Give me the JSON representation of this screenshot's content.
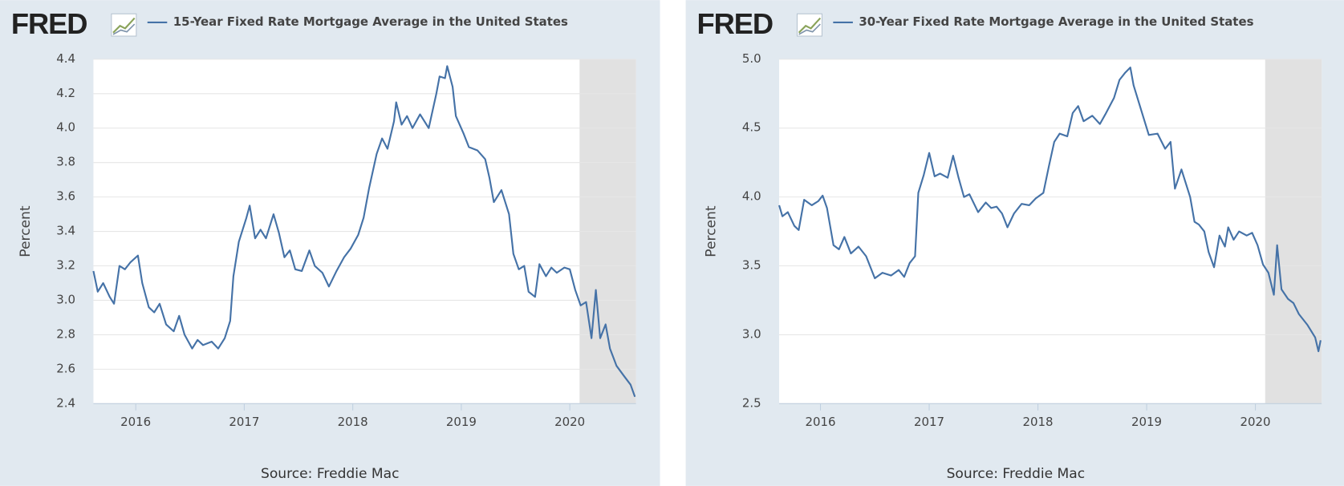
{
  "chart_data": [
    {
      "type": "line",
      "logo": "FRED",
      "y_label": "Percent",
      "source": "Source: Freddie Mac",
      "xlim": [
        2015.61,
        2020.61
      ],
      "xticks": [
        2016,
        2017,
        2018,
        2019,
        2020
      ],
      "ylim": [
        2.4,
        4.4
      ],
      "yticks": [
        2.4,
        2.6,
        2.8,
        {
          "value": 3.0,
          "label": "3.0"
        },
        3.2,
        3.4,
        3.6,
        3.8,
        {
          "value": 4.0,
          "label": "4.0"
        },
        4.2,
        4.4
      ],
      "grid": true,
      "shade": [
        2020.09,
        2020.61
      ],
      "shade_color": "#e1e1e1",
      "x": [
        2015.61,
        2015.65,
        2015.7,
        2015.76,
        2015.8,
        2015.85,
        2015.9,
        2015.95,
        2016.02,
        2016.06,
        2016.12,
        2016.17,
        2016.22,
        2016.28,
        2016.35,
        2016.4,
        2016.45,
        2016.52,
        2016.57,
        2016.62,
        2016.7,
        2016.76,
        2016.82,
        2016.87,
        2016.9,
        2016.95,
        2017.02,
        2017.05,
        2017.1,
        2017.15,
        2017.2,
        2017.27,
        2017.32,
        2017.37,
        2017.42,
        2017.47,
        2017.53,
        2017.6,
        2017.65,
        2017.72,
        2017.78,
        2017.85,
        2017.92,
        2017.98,
        2018.05,
        2018.1,
        2018.15,
        2018.22,
        2018.27,
        2018.32,
        2018.38,
        2018.4,
        2018.45,
        2018.5,
        2018.55,
        2018.62,
        2018.7,
        2018.77,
        2018.8,
        2018.85,
        2018.87,
        2018.92,
        2018.95,
        2019.02,
        2019.07,
        2019.15,
        2019.22,
        2019.26,
        2019.3,
        2019.37,
        2019.44,
        2019.48,
        2019.53,
        2019.58,
        2019.62,
        2019.68,
        2019.72,
        2019.78,
        2019.83,
        2019.88,
        2019.95,
        2020.0,
        2020.05,
        2020.1,
        2020.15,
        2020.2,
        2020.24,
        2020.28,
        2020.33,
        2020.37,
        2020.43,
        2020.5,
        2020.56,
        2020.6
      ],
      "series": [
        {
          "name": "15-Year Fixed Rate Mortgage Average in the United States",
          "color": "#4572a7",
          "values": [
            3.17,
            3.05,
            3.1,
            3.02,
            2.98,
            3.2,
            3.18,
            3.22,
            3.26,
            3.1,
            2.96,
            2.93,
            2.98,
            2.86,
            2.82,
            2.91,
            2.8,
            2.72,
            2.77,
            2.74,
            2.76,
            2.72,
            2.78,
            2.88,
            3.14,
            3.34,
            3.48,
            3.55,
            3.36,
            3.41,
            3.36,
            3.5,
            3.39,
            3.25,
            3.29,
            3.18,
            3.17,
            3.29,
            3.2,
            3.16,
            3.08,
            3.17,
            3.25,
            3.3,
            3.38,
            3.48,
            3.65,
            3.85,
            3.94,
            3.88,
            4.04,
            4.15,
            4.02,
            4.07,
            4.0,
            4.08,
            4.0,
            4.2,
            4.3,
            4.29,
            4.36,
            4.24,
            4.07,
            3.97,
            3.89,
            3.87,
            3.82,
            3.71,
            3.57,
            3.64,
            3.5,
            3.27,
            3.18,
            3.2,
            3.05,
            3.02,
            3.21,
            3.14,
            3.19,
            3.16,
            3.19,
            3.18,
            3.06,
            2.97,
            2.99,
            2.78,
            3.06,
            2.78,
            2.86,
            2.72,
            2.62,
            2.56,
            2.51,
            2.44
          ]
        }
      ]
    },
    {
      "type": "line",
      "logo": "FRED",
      "y_label": "Percent",
      "source": "Source: Freddie Mac",
      "xlim": [
        2015.62,
        2020.61
      ],
      "xticks": [
        2016,
        2017,
        2018,
        2019,
        2020
      ],
      "ylim": [
        2.5,
        5.0
      ],
      "yticks": [
        2.5,
        {
          "value": 3.0,
          "label": "3.0"
        },
        3.5,
        {
          "value": 4.0,
          "label": "4.0"
        },
        4.5,
        {
          "value": 5.0,
          "label": "5.0"
        }
      ],
      "grid": true,
      "shade": [
        2020.09,
        2020.61
      ],
      "shade_color": "#e1e1e1",
      "x": [
        2015.62,
        2015.65,
        2015.7,
        2015.76,
        2015.8,
        2015.85,
        2015.92,
        2015.98,
        2016.02,
        2016.06,
        2016.12,
        2016.17,
        2016.22,
        2016.28,
        2016.35,
        2016.42,
        2016.5,
        2016.57,
        2016.65,
        2016.72,
        2016.77,
        2016.82,
        2016.87,
        2016.9,
        2016.95,
        2017.0,
        2017.05,
        2017.1,
        2017.17,
        2017.22,
        2017.27,
        2017.32,
        2017.37,
        2017.45,
        2017.52,
        2017.57,
        2017.62,
        2017.67,
        2017.72,
        2017.78,
        2017.85,
        2017.92,
        2017.98,
        2018.05,
        2018.1,
        2018.15,
        2018.2,
        2018.27,
        2018.32,
        2018.37,
        2018.42,
        2018.5,
        2018.57,
        2018.62,
        2018.7,
        2018.75,
        2018.8,
        2018.85,
        2018.88,
        2018.95,
        2019.02,
        2019.1,
        2019.17,
        2019.22,
        2019.26,
        2019.32,
        2019.4,
        2019.44,
        2019.48,
        2019.53,
        2019.57,
        2019.62,
        2019.67,
        2019.72,
        2019.75,
        2019.8,
        2019.85,
        2019.92,
        2019.97,
        2020.02,
        2020.07,
        2020.12,
        2020.17,
        2020.2,
        2020.24,
        2020.3,
        2020.35,
        2020.4,
        2020.48,
        2020.55,
        2020.58,
        2020.6
      ],
      "series": [
        {
          "name": "30-Year Fixed Rate Mortgage Average in the United States",
          "color": "#4572a7",
          "values": [
            3.94,
            3.86,
            3.89,
            3.79,
            3.76,
            3.98,
            3.94,
            3.97,
            4.01,
            3.92,
            3.65,
            3.62,
            3.71,
            3.59,
            3.64,
            3.57,
            3.41,
            3.45,
            3.43,
            3.47,
            3.42,
            3.52,
            3.57,
            4.03,
            4.16,
            4.32,
            4.15,
            4.17,
            4.14,
            4.3,
            4.14,
            4.0,
            4.02,
            3.89,
            3.96,
            3.92,
            3.93,
            3.88,
            3.78,
            3.88,
            3.95,
            3.94,
            3.99,
            4.03,
            4.22,
            4.4,
            4.46,
            4.44,
            4.61,
            4.66,
            4.55,
            4.59,
            4.53,
            4.6,
            4.72,
            4.85,
            4.9,
            4.94,
            4.81,
            4.63,
            4.45,
            4.46,
            4.35,
            4.4,
            4.06,
            4.2,
            4.0,
            3.82,
            3.8,
            3.75,
            3.6,
            3.49,
            3.72,
            3.64,
            3.78,
            3.69,
            3.75,
            3.72,
            3.74,
            3.65,
            3.51,
            3.45,
            3.29,
            3.65,
            3.33,
            3.26,
            3.23,
            3.15,
            3.07,
            2.98,
            2.88,
            2.96
          ]
        }
      ]
    }
  ]
}
